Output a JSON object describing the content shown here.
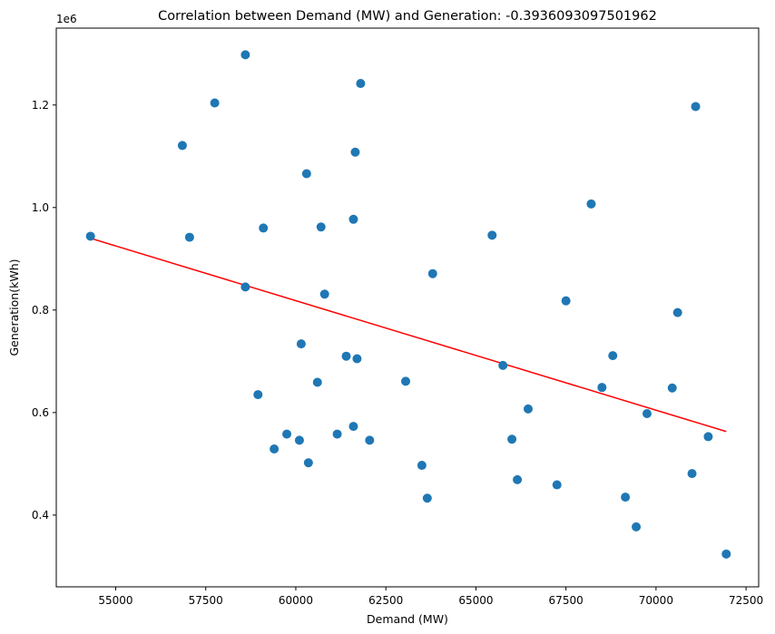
{
  "chart_data": {
    "type": "scatter",
    "title": "Correlation between Demand (MW) and Generation: -0.3936093097501962",
    "xlabel": "Demand (MW)",
    "ylabel": "Generation(kWh)",
    "y_offset_label": "1e6",
    "xlim": [
      53350,
      72850
    ],
    "ylim": [
      260000,
      1350000
    ],
    "x_ticks": [
      55000,
      57500,
      60000,
      62500,
      65000,
      67500,
      70000,
      72500
    ],
    "x_tick_labels": [
      "55000",
      "57500",
      "60000",
      "62500",
      "65000",
      "67500",
      "70000",
      "72500"
    ],
    "y_ticks": [
      400000,
      600000,
      800000,
      1000000,
      1200000
    ],
    "y_tick_labels": [
      "0.4",
      "0.6",
      "0.8",
      "1.0",
      "1.2"
    ],
    "grid": false,
    "series": [
      {
        "type": "scatter",
        "color": "#1f77b4",
        "points": [
          [
            54300,
            944000
          ],
          [
            56850,
            1121000
          ],
          [
            57050,
            942000
          ],
          [
            57750,
            1204000
          ],
          [
            58600,
            845000
          ],
          [
            58600,
            1298000
          ],
          [
            58950,
            635000
          ],
          [
            59100,
            960000
          ],
          [
            59400,
            529000
          ],
          [
            59750,
            558000
          ],
          [
            60100,
            546000
          ],
          [
            60150,
            734000
          ],
          [
            60300,
            1066000
          ],
          [
            60350,
            502000
          ],
          [
            60600,
            659000
          ],
          [
            60700,
            962000
          ],
          [
            60800,
            831000
          ],
          [
            61150,
            558000
          ],
          [
            61400,
            710000
          ],
          [
            61600,
            573000
          ],
          [
            61600,
            977000
          ],
          [
            61650,
            1108000
          ],
          [
            61700,
            705000
          ],
          [
            61800,
            1242000
          ],
          [
            62050,
            546000
          ],
          [
            63050,
            661000
          ],
          [
            63500,
            497000
          ],
          [
            63650,
            433000
          ],
          [
            63800,
            871000
          ],
          [
            65450,
            946000
          ],
          [
            65750,
            692000
          ],
          [
            66000,
            548000
          ],
          [
            66150,
            469000
          ],
          [
            66450,
            607000
          ],
          [
            67250,
            459000
          ],
          [
            67500,
            818000
          ],
          [
            68200,
            1007000
          ],
          [
            68500,
            649000
          ],
          [
            68800,
            711000
          ],
          [
            69150,
            435000
          ],
          [
            69450,
            377000
          ],
          [
            69750,
            598000
          ],
          [
            70450,
            648000
          ],
          [
            70600,
            795000
          ],
          [
            71000,
            481000
          ],
          [
            71100,
            1197000
          ],
          [
            71450,
            553000
          ],
          [
            71950,
            324000
          ]
        ]
      },
      {
        "type": "line",
        "color": "#ff0000",
        "x": [
          54300,
          71950
        ],
        "y": [
          940000,
          563000
        ]
      }
    ]
  }
}
